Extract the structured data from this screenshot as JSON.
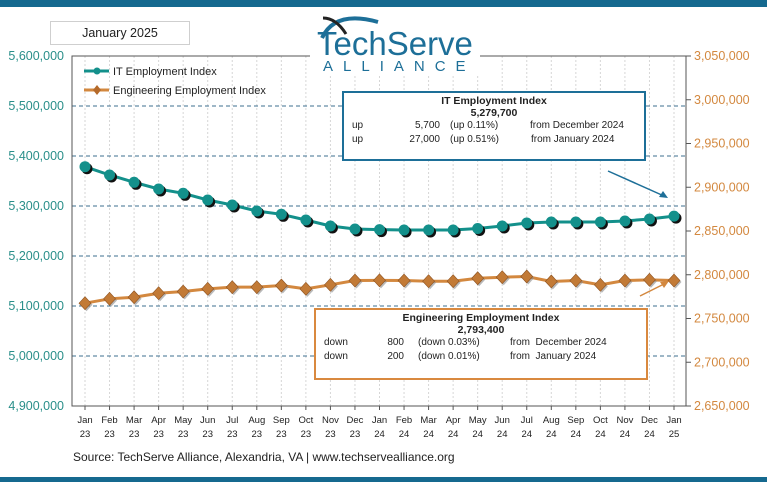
{
  "date_label": "January 2025",
  "logo": {
    "line1": "TechServe",
    "line2": "ALLIANCE"
  },
  "source": "Source: TechServe Alliance, Alexandria, VA | www.techservealliance.org",
  "colors": {
    "it": "#13908b",
    "engineering": "#d3883f",
    "it_box_border": "#1d6f98",
    "eng_box_border": "#d9893f",
    "top_bar": "#15698f"
  },
  "it_box": {
    "title": "IT Employment Index",
    "value": "5,279,700",
    "rows": [
      {
        "dir": "up",
        "amount": "5,700",
        "pct": "(up 0.11%)",
        "from": "from December 2024"
      },
      {
        "dir": "up",
        "amount": "27,000",
        "pct": "(up 0.51%)",
        "from": "from January 2024"
      }
    ]
  },
  "eng_box": {
    "title": "Engineering Employment Index",
    "value": "2,793,400",
    "rows": [
      {
        "dir": "down",
        "amount": "800",
        "pct": "(down 0.03%)",
        "from": "from  December 2024"
      },
      {
        "dir": "down",
        "amount": "200",
        "pct": "(down 0.01%)",
        "from": "from  January 2024"
      }
    ]
  },
  "chart_data": {
    "type": "line",
    "categories": [
      [
        "Jan",
        "23"
      ],
      [
        "Feb",
        "23"
      ],
      [
        "Mar",
        "23"
      ],
      [
        "Apr",
        "23"
      ],
      [
        "May",
        "23"
      ],
      [
        "Jun",
        "23"
      ],
      [
        "Jul",
        "23"
      ],
      [
        "Aug",
        "23"
      ],
      [
        "Sep",
        "23"
      ],
      [
        "Oct",
        "23"
      ],
      [
        "Nov",
        "23"
      ],
      [
        "Dec",
        "23"
      ],
      [
        "Jan",
        "24"
      ],
      [
        "Feb",
        "24"
      ],
      [
        "Mar",
        "24"
      ],
      [
        "Apr",
        "24"
      ],
      [
        "May",
        "24"
      ],
      [
        "Jun",
        "24"
      ],
      [
        "Jul",
        "24"
      ],
      [
        "Aug",
        "24"
      ],
      [
        "Sep",
        "24"
      ],
      [
        "Oct",
        "24"
      ],
      [
        "Nov",
        "24"
      ],
      [
        "Dec",
        "24"
      ],
      [
        "Jan",
        "25"
      ]
    ],
    "legend_placement": "top-left",
    "grid": true,
    "y_left": {
      "range": [
        4900000,
        5600000
      ],
      "step": 100000,
      "ticks": [
        "4,900,000",
        "5,000,000",
        "5,100,000",
        "5,200,000",
        "5,300,000",
        "5,400,000",
        "5,500,000",
        "5,600,000"
      ]
    },
    "y_right": {
      "range": [
        2650000,
        3050000
      ],
      "step": 50000,
      "ticks": [
        "2,650,000",
        "2,700,000",
        "2,750,000",
        "2,800,000",
        "2,850,000",
        "2,900,000",
        "2,950,000",
        "3,000,000",
        "3,050,000"
      ]
    },
    "series": [
      {
        "name": "IT Employment Index",
        "axis": "left",
        "marker": "circle",
        "values": [
          5378600,
          5362000,
          5347400,
          5334000,
          5325400,
          5312000,
          5302000,
          5290000,
          5283400,
          5272000,
          5260000,
          5254000,
          5252700,
          5252000,
          5252000,
          5252000,
          5255000,
          5260000,
          5266000,
          5268000,
          5268000,
          5268000,
          5270000,
          5274000,
          5279700
        ]
      },
      {
        "name": "Engineering Employment Index",
        "axis": "right",
        "marker": "diamond",
        "values": [
          2767500,
          2772500,
          2774300,
          2778900,
          2780800,
          2783900,
          2785800,
          2785800,
          2787700,
          2783900,
          2788500,
          2793400,
          2793600,
          2793400,
          2792600,
          2792600,
          2796000,
          2797200,
          2798000,
          2792300,
          2793400,
          2788500,
          2793400,
          2794200,
          2793400
        ]
      }
    ]
  }
}
